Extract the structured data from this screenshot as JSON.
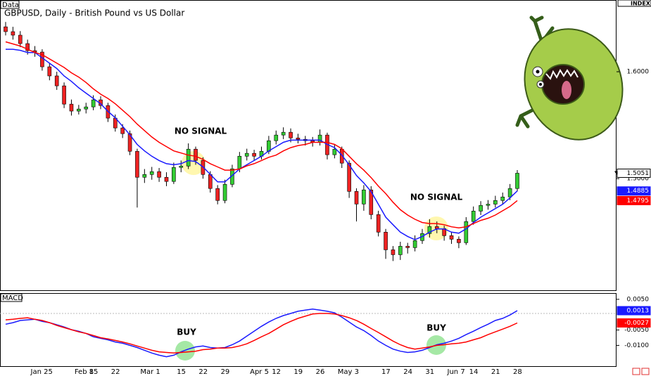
{
  "chart_data": [
    {
      "type": "candlestick",
      "title": "GBPUSD, Daily - British Pound vs US Dollar",
      "panel_label": "Data",
      "index_label": "INDEX",
      "up_color": "#33cc33",
      "down_color": "#ee2222",
      "candles": [
        [
          1.642,
          1.6465,
          1.634,
          1.6375
        ],
        [
          1.6375,
          1.642,
          1.63,
          1.6342
        ],
        [
          1.6342,
          1.638,
          1.623,
          1.6263
        ],
        [
          1.6263,
          1.63,
          1.616,
          1.6197
        ],
        [
          1.6197,
          1.624,
          1.614,
          1.6184
        ],
        [
          1.6184,
          1.621,
          1.601,
          1.6046
        ],
        [
          1.6046,
          1.608,
          1.592,
          1.5961
        ],
        [
          1.5961,
          1.6,
          1.583,
          1.5868
        ],
        [
          1.5868,
          1.59,
          1.566,
          1.5697
        ],
        [
          1.5697,
          1.574,
          1.559,
          1.5632
        ],
        [
          1.5632,
          1.569,
          1.56,
          1.5651
        ],
        [
          1.5651,
          1.571,
          1.561,
          1.5671
        ],
        [
          1.5671,
          1.578,
          1.564,
          1.5737
        ],
        [
          1.5737,
          1.577,
          1.565,
          1.5684
        ],
        [
          1.5684,
          1.571,
          1.553,
          1.5566
        ],
        [
          1.5566,
          1.56,
          1.544,
          1.5474
        ],
        [
          1.5474,
          1.551,
          1.538,
          1.5421
        ],
        [
          1.5421,
          1.545,
          1.522,
          1.5256
        ],
        [
          1.5256,
          1.528,
          1.473,
          1.5013
        ],
        [
          1.5013,
          1.509,
          1.496,
          1.5039
        ],
        [
          1.5039,
          1.511,
          1.499,
          1.5066
        ],
        [
          1.5066,
          1.51,
          1.497,
          1.5013
        ],
        [
          1.5013,
          1.506,
          1.493,
          1.4974
        ],
        [
          1.4974,
          1.515,
          1.495,
          1.5105
        ],
        [
          1.5105,
          1.517,
          1.506,
          1.5118
        ],
        [
          1.5118,
          1.533,
          1.509,
          1.5276
        ],
        [
          1.5276,
          1.53,
          1.513,
          1.5171
        ],
        [
          1.5171,
          1.52,
          1.5,
          1.5039
        ],
        [
          1.5039,
          1.507,
          1.487,
          1.4908
        ],
        [
          1.4908,
          1.494,
          1.476,
          1.4796
        ],
        [
          1.4796,
          1.499,
          1.477,
          1.4947
        ],
        [
          1.4947,
          1.513,
          1.492,
          1.5092
        ],
        [
          1.5092,
          1.525,
          1.506,
          1.521
        ],
        [
          1.521,
          1.528,
          1.517,
          1.5237
        ],
        [
          1.5237,
          1.527,
          1.517,
          1.521
        ],
        [
          1.521,
          1.53,
          1.518,
          1.5256
        ],
        [
          1.5256,
          1.54,
          1.523,
          1.5355
        ],
        [
          1.5355,
          1.545,
          1.532,
          1.5408
        ],
        [
          1.5408,
          1.548,
          1.537,
          1.5434
        ],
        [
          1.5434,
          1.547,
          1.534,
          1.5381
        ],
        [
          1.5381,
          1.542,
          1.533,
          1.5368
        ],
        [
          1.5368,
          1.54,
          1.531,
          1.5355
        ],
        [
          1.5355,
          1.539,
          1.53,
          1.5342
        ],
        [
          1.5342,
          1.546,
          1.531,
          1.5408
        ],
        [
          1.5408,
          1.543,
          1.518,
          1.5224
        ],
        [
          1.5224,
          1.532,
          1.519,
          1.5276
        ],
        [
          1.5276,
          1.53,
          1.51,
          1.5145
        ],
        [
          1.5145,
          1.517,
          1.482,
          1.4881
        ],
        [
          1.4881,
          1.491,
          1.46,
          1.4763
        ],
        [
          1.4763,
          1.494,
          1.47,
          1.4895
        ],
        [
          1.4895,
          1.493,
          1.462,
          1.4664
        ],
        [
          1.4664,
          1.47,
          1.446,
          1.45
        ],
        [
          1.45,
          1.453,
          1.425,
          1.4335
        ],
        [
          1.4335,
          1.437,
          1.423,
          1.4289
        ],
        [
          1.4289,
          1.441,
          1.424,
          1.4368
        ],
        [
          1.4368,
          1.44,
          1.43,
          1.4355
        ],
        [
          1.4355,
          1.447,
          1.432,
          1.4421
        ],
        [
          1.4421,
          1.453,
          1.439,
          1.4487
        ],
        [
          1.4487,
          1.462,
          1.445,
          1.4552
        ],
        [
          1.4552,
          1.46,
          1.449,
          1.4533
        ],
        [
          1.4533,
          1.456,
          1.442,
          1.4467
        ],
        [
          1.4467,
          1.45,
          1.439,
          1.4434
        ],
        [
          1.4434,
          1.446,
          1.435,
          1.4401
        ],
        [
          1.4401,
          1.464,
          1.438,
          1.4599
        ],
        [
          1.4599,
          1.474,
          1.457,
          1.4697
        ],
        [
          1.4697,
          1.479,
          1.466,
          1.475
        ],
        [
          1.475,
          1.48,
          1.471,
          1.4762
        ],
        [
          1.4762,
          1.484,
          1.473,
          1.4796
        ],
        [
          1.4796,
          1.487,
          1.476,
          1.4829
        ],
        [
          1.4829,
          1.495,
          1.48,
          1.4908
        ],
        [
          1.4908,
          1.508,
          1.488,
          1.5051
        ]
      ],
      "series": [
        {
          "color": "#1a1aff",
          "values": [
            1.621,
            1.621,
            1.62,
            1.618,
            1.618,
            1.613,
            1.608,
            1.603,
            1.596,
            1.591,
            1.585,
            1.58,
            1.575,
            1.57,
            1.563,
            1.557,
            1.549,
            1.541,
            1.532,
            1.526,
            1.521,
            1.517,
            1.514,
            1.513,
            1.514,
            1.517,
            1.516,
            1.511,
            1.504,
            1.497,
            1.497,
            1.503,
            1.509,
            1.513,
            1.517,
            1.521,
            1.526,
            1.53,
            1.534,
            1.536,
            1.536,
            1.536,
            1.536,
            1.536,
            1.532,
            1.529,
            1.522,
            1.513,
            1.503,
            1.496,
            1.488,
            1.476,
            1.464,
            1.457,
            1.45,
            1.446,
            1.443,
            1.446,
            1.45,
            1.453,
            1.453,
            1.45,
            1.449,
            1.453,
            1.459,
            1.464,
            1.468,
            1.472,
            1.476,
            1.482,
            1.4885
          ]
        },
        {
          "color": "#ff0000",
          "values": [
            1.628,
            1.626,
            1.624,
            1.621,
            1.618,
            1.616,
            1.612,
            1.608,
            1.604,
            1.599,
            1.595,
            1.59,
            1.584,
            1.579,
            1.575,
            1.57,
            1.564,
            1.558,
            1.551,
            1.545,
            1.539,
            1.534,
            1.53,
            1.526,
            1.524,
            1.522,
            1.521,
            1.518,
            1.514,
            1.511,
            1.508,
            1.508,
            1.509,
            1.512,
            1.514,
            1.517,
            1.52,
            1.522,
            1.526,
            1.529,
            1.531,
            1.532,
            1.534,
            1.534,
            1.534,
            1.532,
            1.528,
            1.521,
            1.514,
            1.508,
            1.501,
            1.493,
            1.486,
            1.478,
            1.471,
            1.466,
            1.462,
            1.459,
            1.458,
            1.458,
            1.457,
            1.455,
            1.454,
            1.455,
            1.458,
            1.461,
            1.463,
            1.466,
            1.47,
            1.474,
            1.4795
          ]
        }
      ],
      "ylim": [
        1.395,
        1.6605
      ],
      "yticks": [
        {
          "value": 1.6,
          "label": "1.6000"
        },
        {
          "value": 1.5,
          "label": "1.5000"
        }
      ],
      "annotations": [
        "NO SIGNAL",
        "NO SIGNAL"
      ]
    },
    {
      "type": "line",
      "title": "MACD",
      "categories": [
        null,
        null,
        null,
        null,
        "Jan 25",
        null,
        null,
        null,
        null,
        null,
        "Feb 8",
        null,
        "15",
        null,
        null,
        "22",
        null,
        null,
        null,
        "Mar 1",
        null,
        null,
        null,
        null,
        "15",
        null,
        null,
        "22",
        null,
        null,
        "29",
        null,
        null,
        null,
        "Apr 5",
        null,
        null,
        "12",
        null,
        null,
        "19",
        null,
        null,
        "26",
        null,
        null,
        "May 3",
        null,
        null,
        null,
        null,
        null,
        "17",
        null,
        null,
        "24",
        null,
        null,
        "31",
        null,
        null,
        "Jun 7",
        null,
        null,
        "14",
        null,
        null,
        "21",
        null,
        null,
        "28"
      ],
      "series": [
        {
          "color": "#1a1aff",
          "values": [
            -0.0031,
            -0.0026,
            -0.0019,
            -0.0017,
            -0.0015,
            -0.0022,
            -0.0026,
            -0.0033,
            -0.004,
            -0.0049,
            -0.0054,
            -0.0061,
            -0.0072,
            -0.0077,
            -0.0082,
            -0.0089,
            -0.0093,
            -0.01,
            -0.0107,
            -0.0116,
            -0.0125,
            -0.0132,
            -0.0137,
            -0.0132,
            -0.0121,
            -0.0112,
            -0.0105,
            -0.0102,
            -0.0107,
            -0.0109,
            -0.0107,
            -0.0098,
            -0.0086,
            -0.007,
            -0.0054,
            -0.0038,
            -0.0024,
            -0.0012,
            -0.0003,
            0.0004,
            0.0011,
            0.0015,
            0.0018,
            0.0015,
            0.0011,
            0.0006,
            -0.0008,
            -0.0024,
            -0.004,
            -0.0052,
            -0.0068,
            -0.0086,
            -0.01,
            -0.0112,
            -0.0119,
            -0.0123,
            -0.0121,
            -0.0116,
            -0.0107,
            -0.0098,
            -0.0093,
            -0.0086,
            -0.0077,
            -0.0065,
            -0.0054,
            -0.0042,
            -0.0031,
            -0.0019,
            -0.0012,
            -0.0001,
            0.0013
          ]
        },
        {
          "color": "#ff0000",
          "values": [
            -0.0017,
            -0.0015,
            -0.0012,
            -0.001,
            -0.0015,
            -0.0019,
            -0.0026,
            -0.0035,
            -0.0042,
            -0.0049,
            -0.0056,
            -0.0061,
            -0.0068,
            -0.0075,
            -0.0079,
            -0.0084,
            -0.0089,
            -0.0095,
            -0.0102,
            -0.0109,
            -0.0116,
            -0.0121,
            -0.0123,
            -0.0125,
            -0.0123,
            -0.0121,
            -0.0119,
            -0.0114,
            -0.0112,
            -0.0109,
            -0.0109,
            -0.0107,
            -0.0102,
            -0.0095,
            -0.0084,
            -0.0072,
            -0.0061,
            -0.0047,
            -0.0033,
            -0.0022,
            -0.0012,
            -0.0005,
            0.0002,
            0.0004,
            0.0004,
            0.0002,
            -0.0003,
            -0.001,
            -0.0019,
            -0.0031,
            -0.0045,
            -0.0058,
            -0.0072,
            -0.0086,
            -0.0098,
            -0.0107,
            -0.0112,
            -0.0109,
            -0.0105,
            -0.01,
            -0.0098,
            -0.0095,
            -0.0093,
            -0.0089,
            -0.0082,
            -0.0075,
            -0.0065,
            -0.0056,
            -0.0047,
            -0.0038,
            -0.0027
          ]
        }
      ],
      "ylim": [
        -0.017,
        0.0068
      ],
      "yticks": [
        {
          "value": 0.005,
          "label": "0.0050"
        },
        {
          "value": -0.005,
          "label": "-0.0050"
        },
        {
          "value": -0.01,
          "label": "-0.0100"
        }
      ],
      "annotations": [
        "BUY",
        "BUY"
      ]
    }
  ]
}
